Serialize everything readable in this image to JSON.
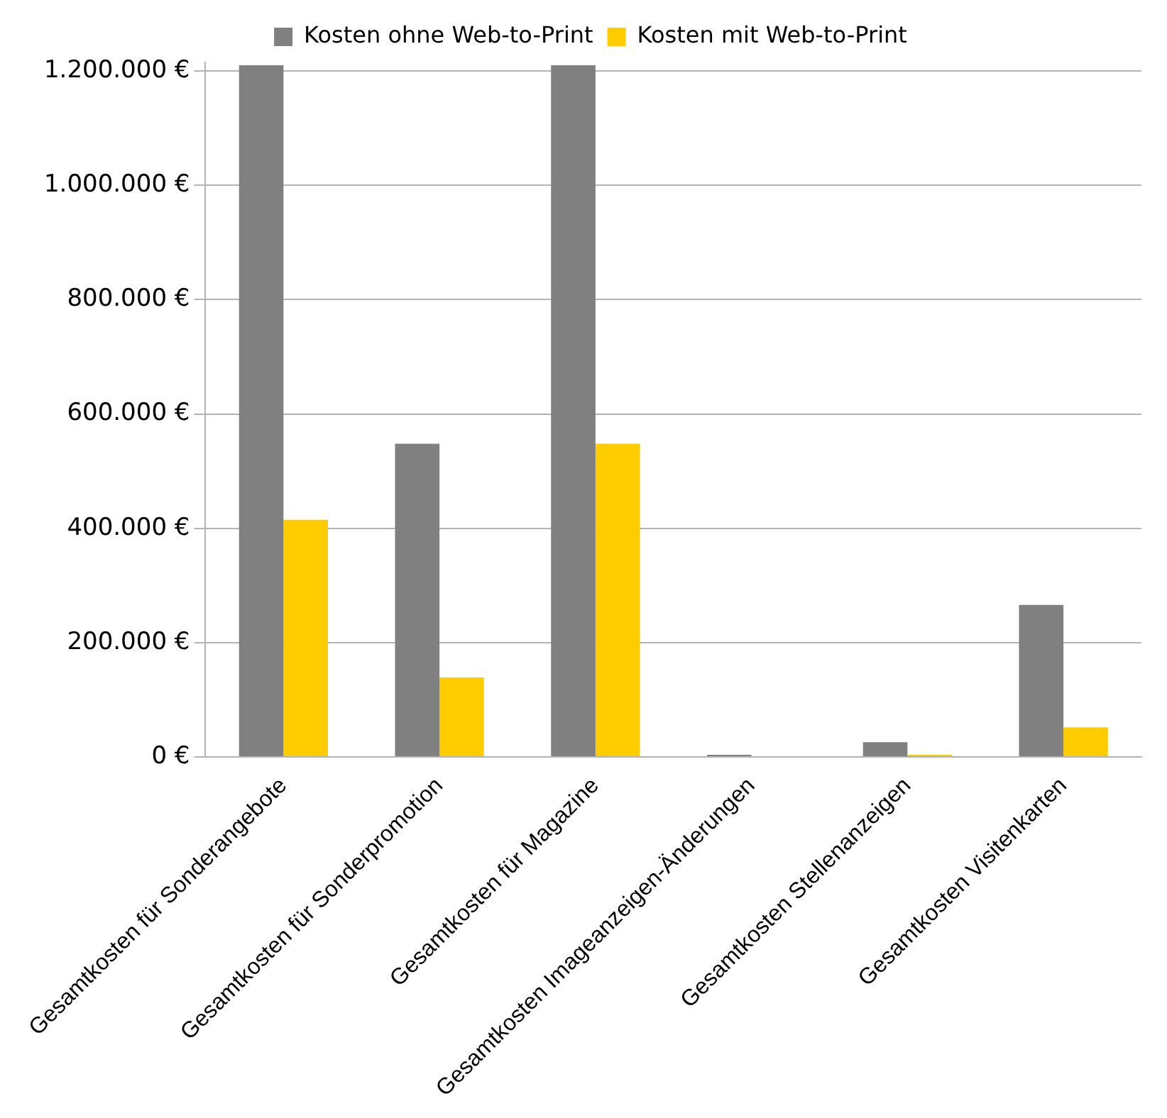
{
  "chart_data": {
    "type": "bar",
    "categories": [
      "Gesamtkosten für Sonderangebote",
      "Gesamtkosten für Sonderpromotion",
      "Gesamtkosten für Magazine",
      "Gesamtkosten Imageanzeigen-Änderungen",
      "Gesamtkosten Stellenanzeigen",
      "Gesamtkosten Visitenkarten"
    ],
    "series": [
      {
        "name": "Kosten ohne Web-to-Print",
        "color": "#808080",
        "values": [
          1210000,
          548000,
          1210000,
          4000,
          26000,
          266000
        ]
      },
      {
        "name": "Kosten mit Web-to-Print",
        "color": "#ffcc00",
        "values": [
          415000,
          139000,
          548000,
          0,
          4000,
          52000
        ]
      }
    ],
    "ylim": [
      0,
      1215000
    ],
    "yticks": [
      {
        "value": 0,
        "label": "0 €"
      },
      {
        "value": 200000,
        "label": "200.000 €"
      },
      {
        "value": 400000,
        "label": "400.000 €"
      },
      {
        "value": 600000,
        "label": "600.000 €"
      },
      {
        "value": 800000,
        "label": "800.000 €"
      },
      {
        "value": 1000000,
        "label": "1.000.000 €"
      },
      {
        "value": 1200000,
        "label": "1.200.000 €"
      }
    ],
    "grid": "y",
    "legend": "top"
  }
}
